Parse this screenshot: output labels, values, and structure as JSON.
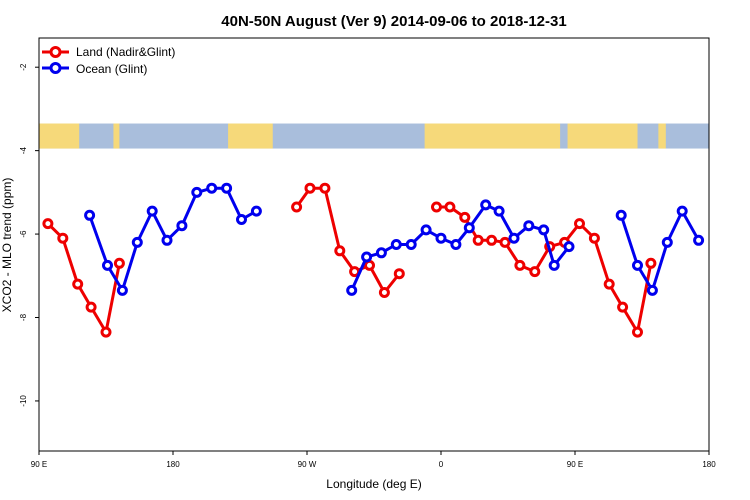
{
  "chart_data": {
    "type": "line",
    "title": "40N-50N August (Ver 9)   2014-09-06 to 2018-12-31",
    "xlabel": "Longitude (deg E)",
    "ylabel": "XCO2 - MLO trend (ppm)",
    "xlim": [
      90,
      540
    ],
    "ylim": [
      -11.2,
      -1.3
    ],
    "x_ticks": [
      {
        "value": 90,
        "label": "90 E"
      },
      {
        "value": 180,
        "label": "180"
      },
      {
        "value": 270,
        "label": "90 W"
      },
      {
        "value": 360,
        "label": "0"
      },
      {
        "value": 450,
        "label": "90 E"
      },
      {
        "value": 540,
        "label": "180"
      }
    ],
    "y_ticks": [
      {
        "value": -2,
        "label": "-2"
      },
      {
        "value": -4,
        "label": "-4"
      },
      {
        "value": -6,
        "label": "-6"
      },
      {
        "value": -8,
        "label": "-8"
      },
      {
        "value": -10,
        "label": "-10"
      }
    ],
    "legend_position": "top-left",
    "map_strip": {
      "y_from": -3.95,
      "y_to": -3.35,
      "ocean_color": "#a9bedc",
      "land_color": "#f6d97a"
    },
    "series": [
      {
        "name": "Land (Nadir&Glint)",
        "color": "#ee0000",
        "segments": [
          [
            [
              96,
              -5.75
            ],
            [
              106,
              -6.1
            ],
            [
              116,
              -7.2
            ],
            [
              125,
              -7.75
            ],
            [
              135,
              -8.35
            ],
            [
              144,
              -6.7
            ]
          ],
          [
            [
              263,
              -5.35
            ],
            [
              272,
              -4.9
            ],
            [
              282,
              -4.9
            ],
            [
              292,
              -6.4
            ],
            [
              302,
              -6.9
            ],
            [
              312,
              -6.75
            ],
            [
              322,
              -7.4
            ],
            [
              332,
              -6.95
            ]
          ],
          [
            [
              357,
              -5.35
            ],
            [
              366,
              -5.35
            ],
            [
              376,
              -5.6
            ],
            [
              385,
              -6.15
            ],
            [
              394,
              -6.15
            ],
            [
              403,
              -6.2
            ],
            [
              413,
              -6.75
            ],
            [
              423,
              -6.9
            ],
            [
              433,
              -6.3
            ],
            [
              443,
              -6.2
            ],
            [
              453,
              -5.75
            ],
            [
              463,
              -6.1
            ],
            [
              473,
              -7.2
            ],
            [
              482,
              -7.75
            ],
            [
              492,
              -8.35
            ],
            [
              501,
              -6.7
            ]
          ]
        ]
      },
      {
        "name": "Ocean (Glint)",
        "color": "#0000ee",
        "segments": [
          [
            [
              124,
              -5.55
            ],
            [
              136,
              -6.75
            ],
            [
              146,
              -7.35
            ],
            [
              156,
              -6.2
            ],
            [
              166,
              -5.45
            ],
            [
              176,
              -6.15
            ],
            [
              186,
              -5.8
            ],
            [
              196,
              -5.0
            ],
            [
              206,
              -4.9
            ],
            [
              216,
              -4.9
            ],
            [
              226,
              -5.65
            ],
            [
              236,
              -5.45
            ]
          ],
          [
            [
              300,
              -7.35
            ],
            [
              310,
              -6.55
            ],
            [
              320,
              -6.45
            ],
            [
              330,
              -6.25
            ],
            [
              340,
              -6.25
            ],
            [
              350,
              -5.9
            ],
            [
              360,
              -6.1
            ],
            [
              370,
              -6.25
            ],
            [
              379,
              -5.85
            ],
            [
              390,
              -5.3
            ],
            [
              399,
              -5.45
            ],
            [
              409,
              -6.1
            ],
            [
              419,
              -5.8
            ],
            [
              429,
              -5.9
            ],
            [
              436,
              -6.75
            ],
            [
              446,
              -6.3
            ]
          ],
          [
            [
              481,
              -5.55
            ],
            [
              492,
              -6.75
            ],
            [
              502,
              -7.35
            ],
            [
              512,
              -6.2
            ],
            [
              522,
              -5.45
            ],
            [
              533,
              -6.15
            ]
          ]
        ]
      }
    ]
  }
}
